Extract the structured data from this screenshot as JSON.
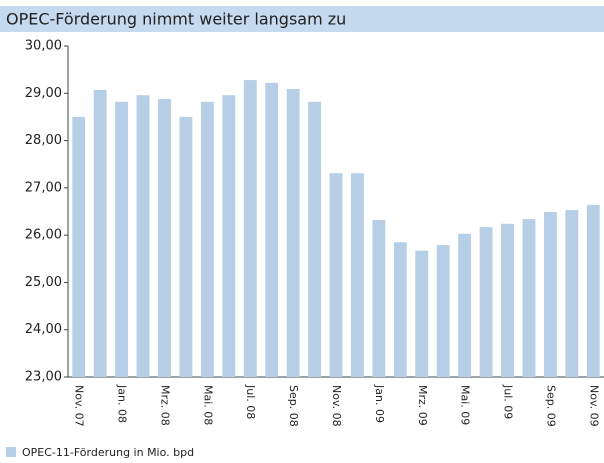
{
  "chart_data": {
    "type": "bar",
    "title": "OPEC-Förderung nimmt weiter langsam zu",
    "categories": [
      "Nov. 07",
      null,
      "Jan. 08",
      null,
      "Mrz. 08",
      null,
      "Mai. 08",
      null,
      "Jul. 08",
      null,
      "Sep. 08",
      null,
      "Nov. 08",
      null,
      "Jan. 09",
      null,
      "Mrz. 09",
      null,
      "Mai. 09",
      null,
      "Jul. 09",
      null,
      "Sep. 09",
      null,
      "Nov. 09"
    ],
    "series": [
      {
        "name": "OPEC-11-Förderung in Mio. bpd",
        "color": "#b7cfe6",
        "values": [
          28.5,
          29.07,
          28.82,
          28.96,
          28.88,
          28.5,
          28.82,
          28.96,
          29.28,
          29.22,
          29.09,
          28.82,
          27.31,
          27.31,
          26.32,
          25.85,
          25.67,
          25.79,
          26.03,
          26.17,
          26.24,
          26.34,
          26.49,
          26.53,
          26.64
        ]
      }
    ],
    "ylim": [
      23,
      30
    ],
    "yticks": [
      {
        "value": 23,
        "label": "23,00"
      },
      {
        "value": 24,
        "label": "24,00"
      },
      {
        "value": 25,
        "label": "25,00"
      },
      {
        "value": 26,
        "label": "26,00"
      },
      {
        "value": 27,
        "label": "27,00"
      },
      {
        "value": 28,
        "label": "28,00"
      },
      {
        "value": 29,
        "label": "29,00"
      },
      {
        "value": 30,
        "label": "30,00"
      }
    ],
    "grid": false
  }
}
